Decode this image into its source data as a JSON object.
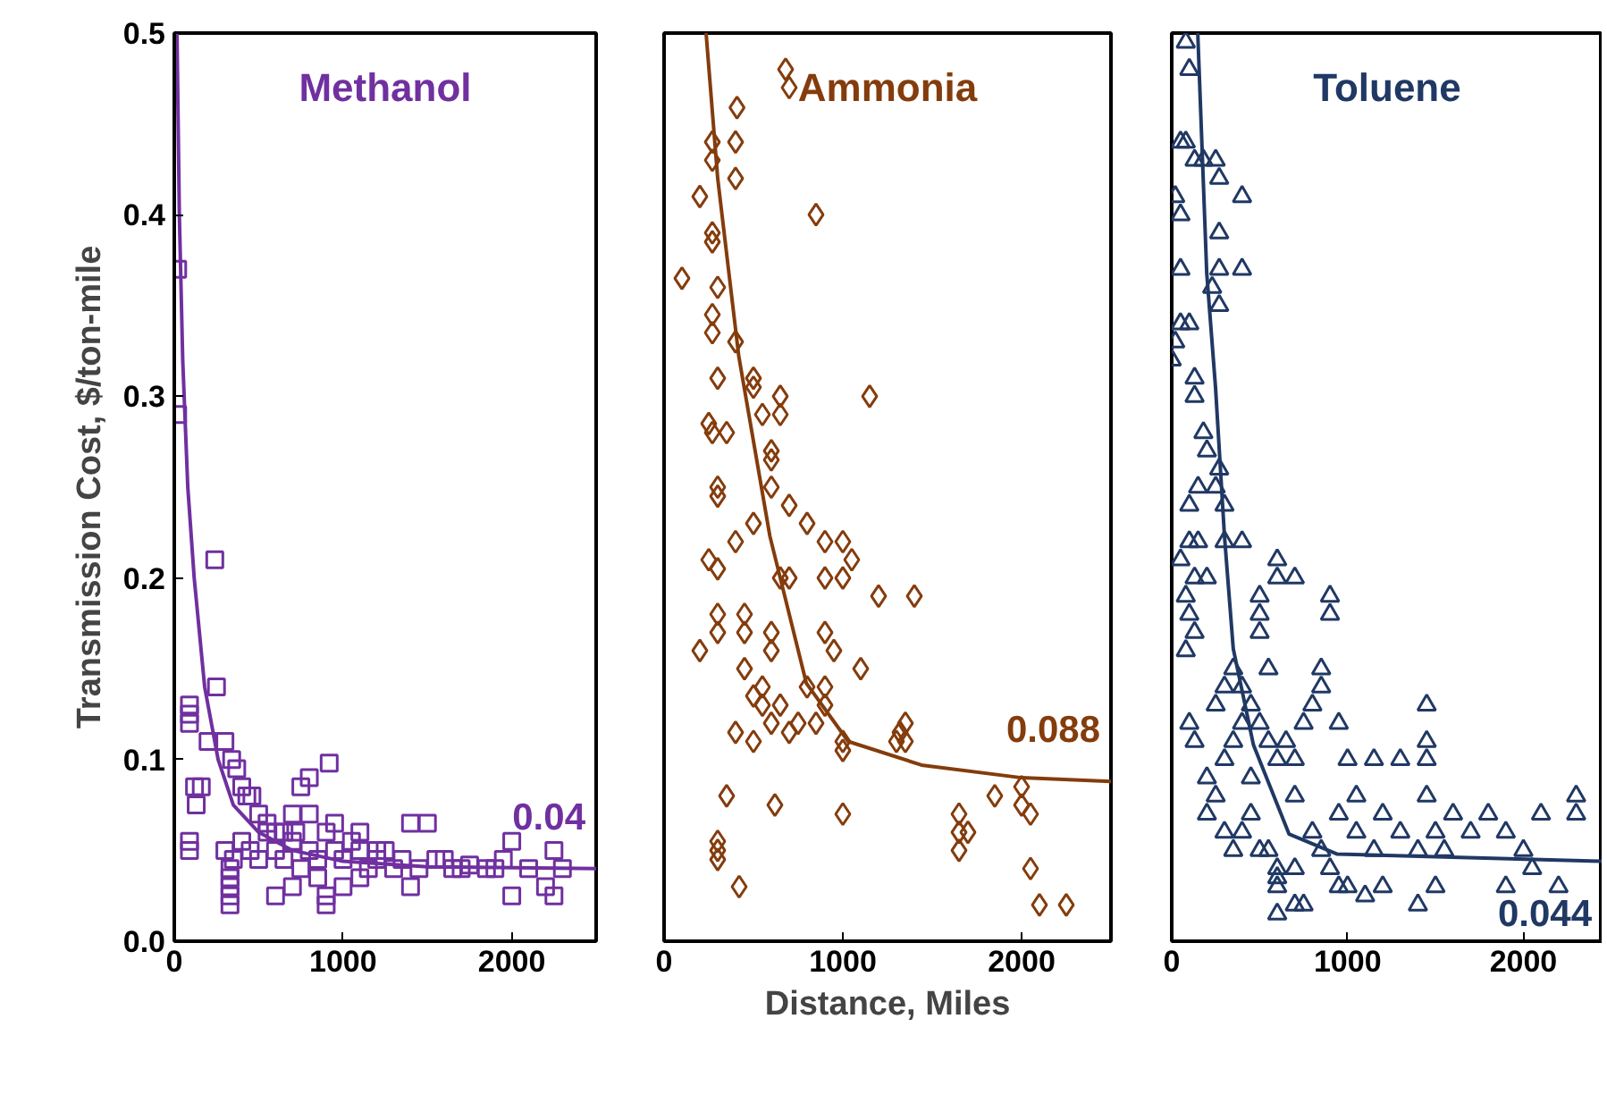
{
  "chart_data": [
    {
      "type": "scatter",
      "title": "Methanol",
      "ylabel": "Transmission Cost, $/ton-mile",
      "xlim": [
        0,
        2500
      ],
      "xticks": [
        0,
        1000,
        2000
      ],
      "ylim": [
        0,
        0.5
      ],
      "yticks": [
        {
          "value": 0,
          "label": "0.0"
        },
        0.1,
        0.2,
        0.3,
        0.4,
        0.5
      ],
      "grid": false,
      "annotations": [
        "0.04"
      ],
      "series": [
        {
          "marker": "square",
          "color": "#7030a0",
          "x": [
            20,
            20,
            240,
            250,
            90,
            90,
            90,
            200,
            300,
            340,
            370,
            160,
            90,
            90,
            120,
            130,
            400,
            430,
            460,
            500,
            550,
            600,
            650,
            720,
            750,
            800,
            918,
            330,
            330,
            330,
            330,
            330,
            600,
            700,
            900,
            900,
            1100,
            1400,
            2000,
            2200,
            2250,
            1400,
            1500,
            2000,
            2250,
            1950,
            1850,
            1700,
            1600,
            300,
            350,
            400,
            450,
            500,
            550,
            600,
            650,
            700,
            750,
            800,
            850,
            900,
            950,
            1000,
            1050,
            1100,
            1150,
            1200,
            1250,
            1300,
            1350,
            1450,
            1550,
            1650,
            1750,
            1900,
            2100,
            2300,
            800,
            850,
            700,
            950,
            1000,
            1100,
            1200
          ],
          "values": [
            0.37,
            0.29,
            0.21,
            0.14,
            0.12,
            0.125,
            0.13,
            0.11,
            0.11,
            0.1,
            0.095,
            0.085,
            0.055,
            0.05,
            0.085,
            0.075,
            0.085,
            0.08,
            0.08,
            0.07,
            0.065,
            0.06,
            0.06,
            0.06,
            0.085,
            0.09,
            0.098,
            0.02,
            0.025,
            0.03,
            0.035,
            0.04,
            0.025,
            0.03,
            0.02,
            0.025,
            0.035,
            0.03,
            0.025,
            0.03,
            0.025,
            0.065,
            0.065,
            0.055,
            0.05,
            0.045,
            0.04,
            0.04,
            0.045,
            0.05,
            0.045,
            0.055,
            0.05,
            0.045,
            0.06,
            0.05,
            0.045,
            0.055,
            0.04,
            0.05,
            0.045,
            0.06,
            0.05,
            0.045,
            0.055,
            0.05,
            0.04,
            0.045,
            0.05,
            0.04,
            0.045,
            0.04,
            0.045,
            0.04,
            0.042,
            0.04,
            0.04,
            0.04,
            0.07,
            0.035,
            0.07,
            0.065,
            0.03,
            0.06,
            0.05
          ]
        },
        {
          "type": "line",
          "color": "#7030a0",
          "x": [
            16,
            30,
            50,
            80,
            118,
            180,
            260,
            350,
            500,
            700,
            1000,
            1500,
            2500
          ],
          "values": [
            0.5,
            0.4,
            0.32,
            0.25,
            0.2,
            0.14,
            0.1,
            0.075,
            0.06,
            0.05,
            0.044,
            0.041,
            0.04
          ]
        }
      ]
    },
    {
      "type": "scatter",
      "title": "Ammonia",
      "xlabel": "Distance, Miles",
      "xlim": [
        0,
        2500
      ],
      "xticks": [
        0,
        1000,
        2000
      ],
      "ylim": [
        0,
        0.5
      ],
      "tick_labels": "x",
      "grid": false,
      "annotations": [
        "0.088"
      ],
      "series": [
        {
          "marker": "diamond",
          "color": "#843c0c",
          "x": [
            680,
            700,
            408,
            270,
            270,
            400,
            400,
            200,
            270,
            270,
            850,
            300,
            100,
            270,
            270,
            400,
            300,
            500,
            500,
            550,
            650,
            650,
            250,
            270,
            350,
            600,
            600,
            1150,
            300,
            300,
            500,
            600,
            700,
            800,
            900,
            400,
            250,
            300,
            1000,
            1050,
            1000,
            900,
            700,
            650,
            300,
            300,
            450,
            450,
            200,
            600,
            600,
            450,
            900,
            950,
            1100,
            1200,
            1400,
            500,
            550,
            550,
            600,
            700,
            650,
            750,
            900,
            850,
            800,
            900,
            1000,
            1000,
            1300,
            1320,
            1350,
            1350,
            400,
            500,
            350,
            300,
            300,
            300,
            420,
            1000,
            620,
            1650,
            1650,
            1700,
            1650,
            1850,
            2000,
            2000,
            2050,
            2050,
            2100,
            2250
          ],
          "values": [
            0.48,
            0.47,
            0.459,
            0.44,
            0.43,
            0.44,
            0.42,
            0.41,
            0.39,
            0.385,
            0.4,
            0.36,
            0.365,
            0.345,
            0.335,
            0.33,
            0.31,
            0.31,
            0.305,
            0.29,
            0.3,
            0.29,
            0.285,
            0.28,
            0.28,
            0.27,
            0.265,
            0.3,
            0.25,
            0.245,
            0.23,
            0.25,
            0.24,
            0.23,
            0.22,
            0.22,
            0.21,
            0.205,
            0.22,
            0.21,
            0.2,
            0.2,
            0.2,
            0.2,
            0.18,
            0.17,
            0.18,
            0.17,
            0.16,
            0.17,
            0.16,
            0.15,
            0.17,
            0.16,
            0.15,
            0.19,
            0.19,
            0.135,
            0.14,
            0.13,
            0.12,
            0.115,
            0.13,
            0.12,
            0.13,
            0.12,
            0.14,
            0.14,
            0.105,
            0.11,
            0.11,
            0.115,
            0.11,
            0.12,
            0.115,
            0.11,
            0.08,
            0.045,
            0.05,
            0.055,
            0.03,
            0.07,
            0.075,
            0.06,
            0.07,
            0.06,
            0.05,
            0.08,
            0.085,
            0.075,
            0.07,
            0.04,
            0.02,
            0.02
          ]
        },
        {
          "type": "line",
          "color": "#843c0c",
          "x": [
            235,
            300,
            418,
            592,
            796,
            1030,
            1440,
            2000,
            2500
          ],
          "values": [
            0.5,
            0.42,
            0.322,
            0.223,
            0.142,
            0.11,
            0.097,
            0.09,
            0.088
          ]
        }
      ]
    },
    {
      "type": "scatter",
      "title": "Toluene",
      "xlim": [
        0,
        2450
      ],
      "xticks": [
        0,
        1000,
        2000
      ],
      "ylim": [
        0,
        0.5
      ],
      "tick_labels": "x",
      "grid": false,
      "annotations": [
        "0.044"
      ],
      "series": [
        {
          "marker": "triangle",
          "color": "#203864",
          "x": [
            80,
            100,
            50,
            80,
            130,
            180,
            250,
            270,
            20,
            50,
            270,
            270,
            50,
            230,
            400,
            400,
            50,
            100,
            270,
            20,
            0,
            130,
            130,
            180,
            200,
            100,
            150,
            250,
            270,
            300,
            300,
            100,
            150,
            400,
            50,
            130,
            200,
            80,
            100,
            130,
            80,
            600,
            600,
            700,
            900,
            900,
            500,
            500,
            500,
            550,
            850,
            850,
            800,
            750,
            950,
            100,
            130,
            200,
            300,
            350,
            400,
            450,
            500,
            550,
            600,
            650,
            700,
            1000,
            1150,
            1300,
            1450,
            1450,
            1450,
            1450,
            1050,
            1200,
            200,
            250,
            300,
            350,
            400,
            450,
            500,
            550,
            600,
            600,
            600,
            700,
            700,
            600,
            750,
            800,
            850,
            900,
            950,
            1000,
            1100,
            1200,
            1300,
            1400,
            1500,
            1550,
            1600,
            1700,
            1800,
            1900,
            2000,
            2100,
            2300,
            2300,
            2050,
            1400,
            1500,
            1900,
            2200,
            1150,
            1050,
            950,
            450,
            700,
            300,
            350,
            250,
            400
          ],
          "values": [
            0.495,
            0.48,
            0.44,
            0.44,
            0.43,
            0.43,
            0.43,
            0.42,
            0.41,
            0.4,
            0.39,
            0.37,
            0.37,
            0.36,
            0.41,
            0.37,
            0.34,
            0.34,
            0.35,
            0.33,
            0.32,
            0.31,
            0.3,
            0.28,
            0.27,
            0.24,
            0.25,
            0.25,
            0.26,
            0.24,
            0.22,
            0.22,
            0.22,
            0.22,
            0.21,
            0.2,
            0.2,
            0.19,
            0.18,
            0.17,
            0.16,
            0.21,
            0.2,
            0.2,
            0.19,
            0.18,
            0.19,
            0.18,
            0.17,
            0.15,
            0.15,
            0.14,
            0.13,
            0.12,
            0.12,
            0.12,
            0.11,
            0.09,
            0.1,
            0.11,
            0.12,
            0.13,
            0.12,
            0.11,
            0.1,
            0.11,
            0.1,
            0.1,
            0.1,
            0.1,
            0.13,
            0.11,
            0.1,
            0.08,
            0.08,
            0.07,
            0.07,
            0.08,
            0.06,
            0.05,
            0.06,
            0.07,
            0.05,
            0.05,
            0.04,
            0.035,
            0.03,
            0.04,
            0.02,
            0.015,
            0.02,
            0.06,
            0.05,
            0.04,
            0.03,
            0.03,
            0.025,
            0.03,
            0.06,
            0.05,
            0.06,
            0.05,
            0.07,
            0.06,
            0.07,
            0.06,
            0.05,
            0.07,
            0.08,
            0.07,
            0.04,
            0.02,
            0.03,
            0.03,
            0.03,
            0.05,
            0.06,
            0.07,
            0.09,
            0.08,
            0.14,
            0.15,
            0.13,
            0.14
          ]
        },
        {
          "type": "line",
          "color": "#203864",
          "x": [
            148,
            199,
            249,
            300,
            350,
            465,
            667,
            939,
            2450
          ],
          "values": [
            0.5,
            0.368,
            0.305,
            0.223,
            0.161,
            0.108,
            0.059,
            0.048,
            0.044
          ]
        }
      ]
    }
  ]
}
